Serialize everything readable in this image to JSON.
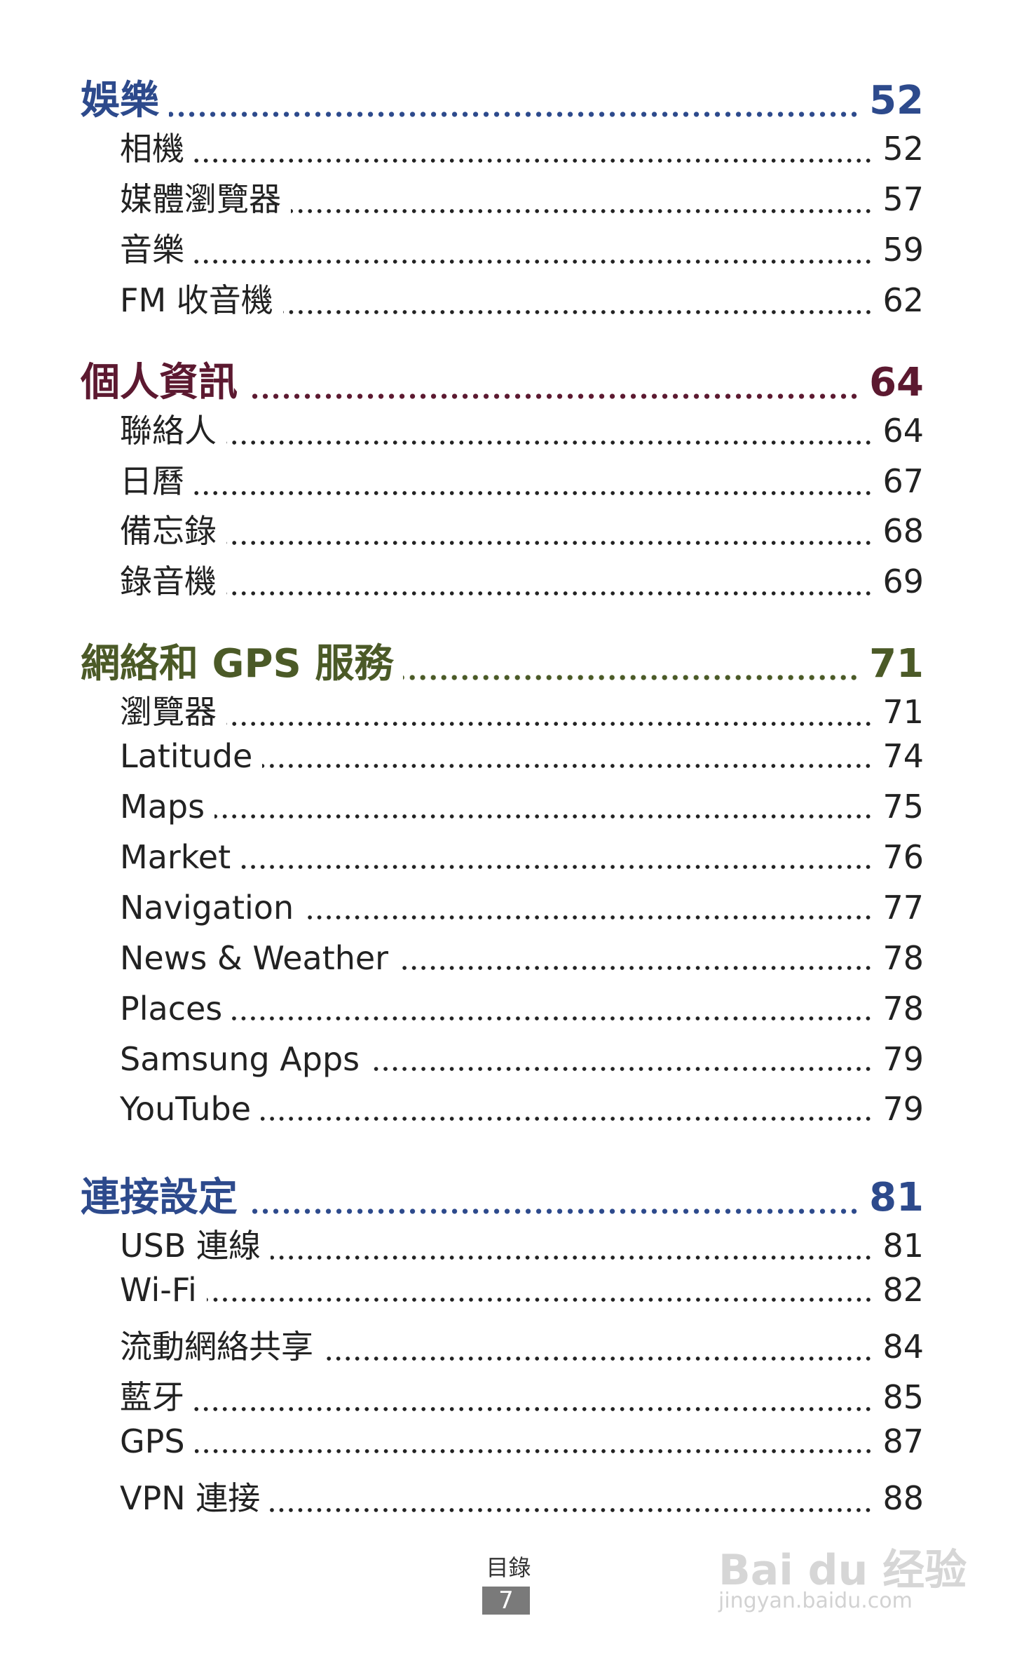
{
  "sections": [
    {
      "title": "娛樂",
      "page": "52",
      "color": "#2d4a8c",
      "items": [
        {
          "label": "相機",
          "page": "52"
        },
        {
          "label": "媒體瀏覽器",
          "page": "57"
        },
        {
          "label": "音樂",
          "page": "59"
        },
        {
          "label": "FM 收音機",
          "page": "62"
        }
      ]
    },
    {
      "title": "個人資訊",
      "page": "64",
      "color": "#5c1930",
      "items": [
        {
          "label": "聯絡人",
          "page": "64"
        },
        {
          "label": "日曆",
          "page": "67"
        },
        {
          "label": "備忘錄",
          "page": "68"
        },
        {
          "label": "錄音機",
          "page": "69"
        }
      ]
    },
    {
      "title": "網絡和 GPS 服務",
      "page": "71",
      "color": "#4b5a27",
      "items": [
        {
          "label": "瀏覽器",
          "page": "71"
        },
        {
          "label": "Latitude",
          "page": "74"
        },
        {
          "label": "Maps",
          "page": "75"
        },
        {
          "label": "Market",
          "page": "76"
        },
        {
          "label": "Navigation",
          "page": "77"
        },
        {
          "label": "News & Weather",
          "page": "78"
        },
        {
          "label": "Places",
          "page": "78"
        },
        {
          "label": "Samsung Apps",
          "page": "79"
        },
        {
          "label": "YouTube",
          "page": "79"
        }
      ]
    },
    {
      "title": "連接設定",
      "page": "81",
      "color": "#2d4a8c",
      "items": [
        {
          "label": "USB 連線",
          "page": "81"
        },
        {
          "label": "Wi-Fi",
          "page": "82"
        },
        {
          "label": "流動網絡共享",
          "page": "84"
        },
        {
          "label": "藍牙",
          "page": "85"
        },
        {
          "label": "GPS",
          "page": "87"
        },
        {
          "label": "VPN 連接",
          "page": "88"
        }
      ]
    }
  ],
  "footer": {
    "label": "目錄",
    "page": "7"
  },
  "watermark": {
    "brand": "Bai du 经验",
    "url": "jingyan.baidu.com"
  }
}
